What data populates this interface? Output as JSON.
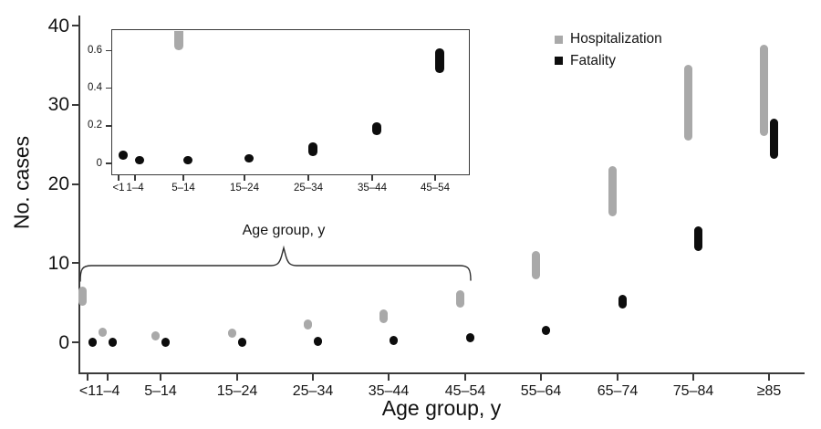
{
  "figure": {
    "ylabel": "No. cases",
    "xlabel": "Age group, y",
    "brace_label": "Age group, y"
  },
  "legend": {
    "items": [
      {
        "label": "Hospitalization",
        "color": "#a9a9a9"
      },
      {
        "label": "Fatality",
        "color": "#0d0d0d"
      }
    ]
  },
  "chart_data": {
    "type": "interval-bar (vertical range bars / dots per category, with magnified inset)",
    "title": "",
    "xlabel": "Age group, y",
    "ylabel": "No. cases",
    "categories": [
      "<1",
      "1–4",
      "5–14",
      "15–24",
      "25–34",
      "35–44",
      "45–54",
      "55–64",
      "65–74",
      "75–84",
      "≥85"
    ],
    "series": [
      {
        "name": "Hospitalization",
        "color": "#a9a9a9",
        "intervals": [
          [
            4.6,
            7.0
          ],
          [
            0.9,
            1.6
          ],
          [
            0.6,
            0.9
          ],
          [
            0.8,
            1.4
          ],
          [
            1.6,
            2.9
          ],
          [
            2.4,
            4.2
          ],
          [
            4.4,
            6.6
          ],
          [
            7.9,
            11.5
          ],
          [
            15.9,
            22.2
          ],
          [
            25.5,
            35.1
          ],
          [
            26.0,
            37.6
          ]
        ]
      },
      {
        "name": "Fatality",
        "color": "#0d0d0d",
        "intervals": [
          [
            0.02,
            0.07
          ],
          [
            0.0,
            0.03
          ],
          [
            0.0,
            0.03
          ],
          [
            0.01,
            0.04
          ],
          [
            0.04,
            0.11
          ],
          [
            0.15,
            0.22
          ],
          [
            0.48,
            0.61
          ],
          [
            1.2,
            1.9
          ],
          [
            4.3,
            6.0
          ],
          [
            11.5,
            14.6
          ],
          [
            23.2,
            28.2
          ]
        ]
      }
    ],
    "main_axis": {
      "yticks": [
        0,
        10,
        20,
        30,
        40
      ],
      "ylim": [
        -3.9,
        41.3
      ],
      "grid": false
    },
    "inset": {
      "description": "Magnified view of low values for age groups <1 through 45–54",
      "categories": [
        "<1",
        "1–4",
        "5–14",
        "15–24",
        "25–34",
        "35–44",
        "45–54"
      ],
      "yticks": [
        0,
        0.2,
        0.4,
        0.6
      ],
      "ylim": [
        -0.07,
        0.72
      ]
    },
    "legend_position": "top-right"
  }
}
